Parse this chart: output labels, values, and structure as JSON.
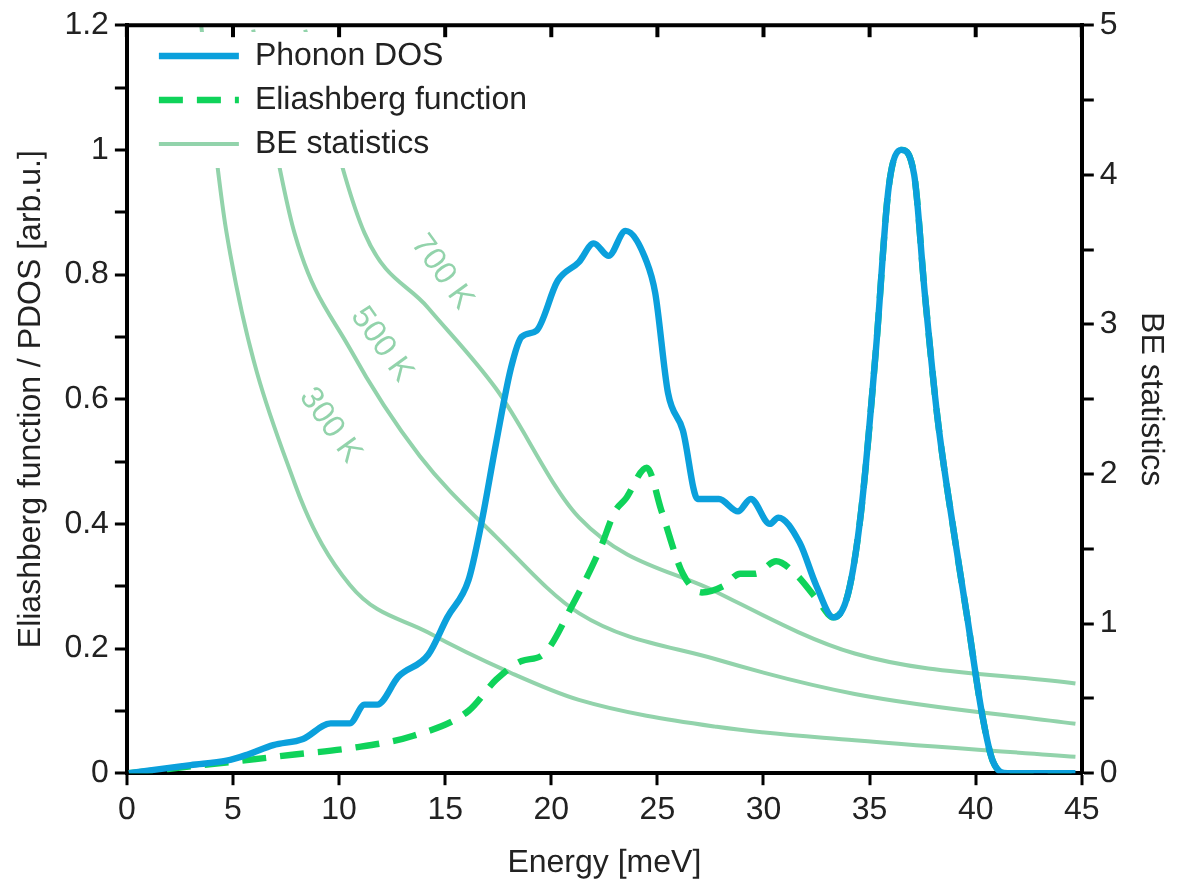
{
  "chart_data": {
    "type": "line",
    "xlabel": "Energy [meV]",
    "ylabel": "Eliashberg function / PDOS [arb.u.]",
    "y2label": "BE statistics",
    "xlim": [
      0,
      45
    ],
    "xticks": [
      0,
      5,
      10,
      15,
      20,
      25,
      30,
      35,
      40,
      45
    ],
    "ylim": [
      0,
      1.2
    ],
    "yticks": [
      0,
      {
        "value": 0.1,
        "label": null
      },
      0.2,
      {
        "value": 0.3,
        "label": null
      },
      0.4,
      {
        "value": 0.5,
        "label": null
      },
      0.6,
      {
        "value": 0.7,
        "label": null
      },
      0.8,
      {
        "value": 0.9,
        "label": null
      },
      1,
      {
        "value": 1.1,
        "label": null
      },
      1.2
    ],
    "y2lim": [
      0,
      5
    ],
    "y2ticks": [
      0,
      {
        "value": 0.5,
        "label": null
      },
      1,
      {
        "value": 1.5,
        "label": null
      },
      2,
      {
        "value": 2.5,
        "label": null
      },
      3,
      {
        "value": 3.5,
        "label": null
      },
      4,
      {
        "value": 4.5,
        "label": null
      },
      5
    ],
    "grid": false,
    "legend": "top left",
    "marker": "none",
    "series": [
      {
        "name": "Phonon DOS",
        "color": "#0ba0dc",
        "line_style": "solid",
        "x": [
          0.1,
          3.0,
          4.7,
          5.7,
          6.9,
          8.3,
          9.6,
          10.5,
          11.2,
          11.8,
          12.8,
          14.2,
          15.1,
          16.1,
          16.7,
          17.4,
          18.1,
          18.6,
          19.3,
          20.3,
          21.3,
          22.0,
          22.7,
          23.5,
          24.5,
          24.9,
          25.5,
          26.2,
          26.9,
          27.9,
          28.8,
          29.4,
          30.3,
          30.7,
          31.7,
          32.5,
          33.3,
          34.0,
          34.6,
          35.3,
          35.9,
          36.5,
          37.1,
          37.6,
          38.2,
          39.0,
          39.6,
          40.3,
          40.8,
          41.5,
          44.7
        ],
        "values": [
          0,
          0.013,
          0.02,
          0.03,
          0.045,
          0.055,
          0.08,
          0.08,
          0.11,
          0.11,
          0.155,
          0.19,
          0.25,
          0.31,
          0.4,
          0.53,
          0.65,
          0.7,
          0.71,
          0.79,
          0.82,
          0.85,
          0.83,
          0.87,
          0.82,
          0.77,
          0.61,
          0.55,
          0.44,
          0.44,
          0.42,
          0.44,
          0.4,
          0.41,
          0.37,
          0.3,
          0.25,
          0.29,
          0.42,
          0.68,
          0.94,
          1,
          0.96,
          0.77,
          0.57,
          0.38,
          0.25,
          0.095,
          0.02,
          0,
          0
        ]
      },
      {
        "name": "Eliashberg function",
        "color": "#0fd35a",
        "line_style": "dashed",
        "x": [
          0.1,
          5.4,
          7.9,
          10.5,
          13.5,
          16.1,
          17.4,
          18.6,
          19.6,
          21.0,
          22.3,
          23.0,
          23.5,
          24.5,
          25.2,
          26.2,
          27.1,
          28.1,
          28.9,
          29.6,
          30.6,
          31.5,
          32.5,
          33.3,
          34.0,
          34.6,
          35.3,
          35.9,
          36.5,
          37.1,
          37.6,
          38.2,
          39.0,
          39.6,
          40.3,
          40.8,
          41.5,
          44.7
        ],
        "values": [
          0,
          0.02,
          0.03,
          0.04,
          0.06,
          0.1,
          0.15,
          0.18,
          0.19,
          0.27,
          0.36,
          0.42,
          0.44,
          0.49,
          0.42,
          0.32,
          0.29,
          0.3,
          0.32,
          0.32,
          0.34,
          0.32,
          0.28,
          0.25,
          0.29,
          0.42,
          0.68,
          0.94,
          1,
          0.96,
          0.77,
          0.57,
          0.38,
          0.25,
          0.095,
          0.02,
          0,
          0
        ]
      },
      {
        "name": "BE statistics",
        "color": "#92d3ab",
        "line_style": "solid",
        "axis": "y2",
        "x": [
          3.5,
          4.7,
          7.9,
          10.5,
          14.2,
          18.1,
          21.3,
          27.8,
          34.3,
          44.7
        ],
        "values": [
          5.0,
          3.61,
          1.94,
          1.26,
          0.94,
          0.67,
          0.49,
          0.31,
          0.22,
          0.11
        ]
      },
      {
        "color": "#92d3ab",
        "line_style": "solid",
        "axis": "y2",
        "x": [
          5.95,
          7.9,
          10.5,
          13.8,
          17.4,
          21.3,
          27.8,
          34.3,
          44.7
        ],
        "values": [
          4.97,
          3.61,
          2.84,
          2.12,
          1.58,
          1.07,
          0.76,
          0.53,
          0.33
        ]
      },
      {
        "color": "#92d3ab",
        "line_style": "solid",
        "axis": "y2",
        "x": [
          8.4,
          11.2,
          14.2,
          17.4,
          21.3,
          27.8,
          34.3,
          44.7
        ],
        "values": [
          4.97,
          3.61,
          3.11,
          2.57,
          1.71,
          1.21,
          0.8,
          0.6
        ]
      }
    ],
    "annotations": [
      "700 K",
      "500 K",
      "300 K"
    ]
  }
}
